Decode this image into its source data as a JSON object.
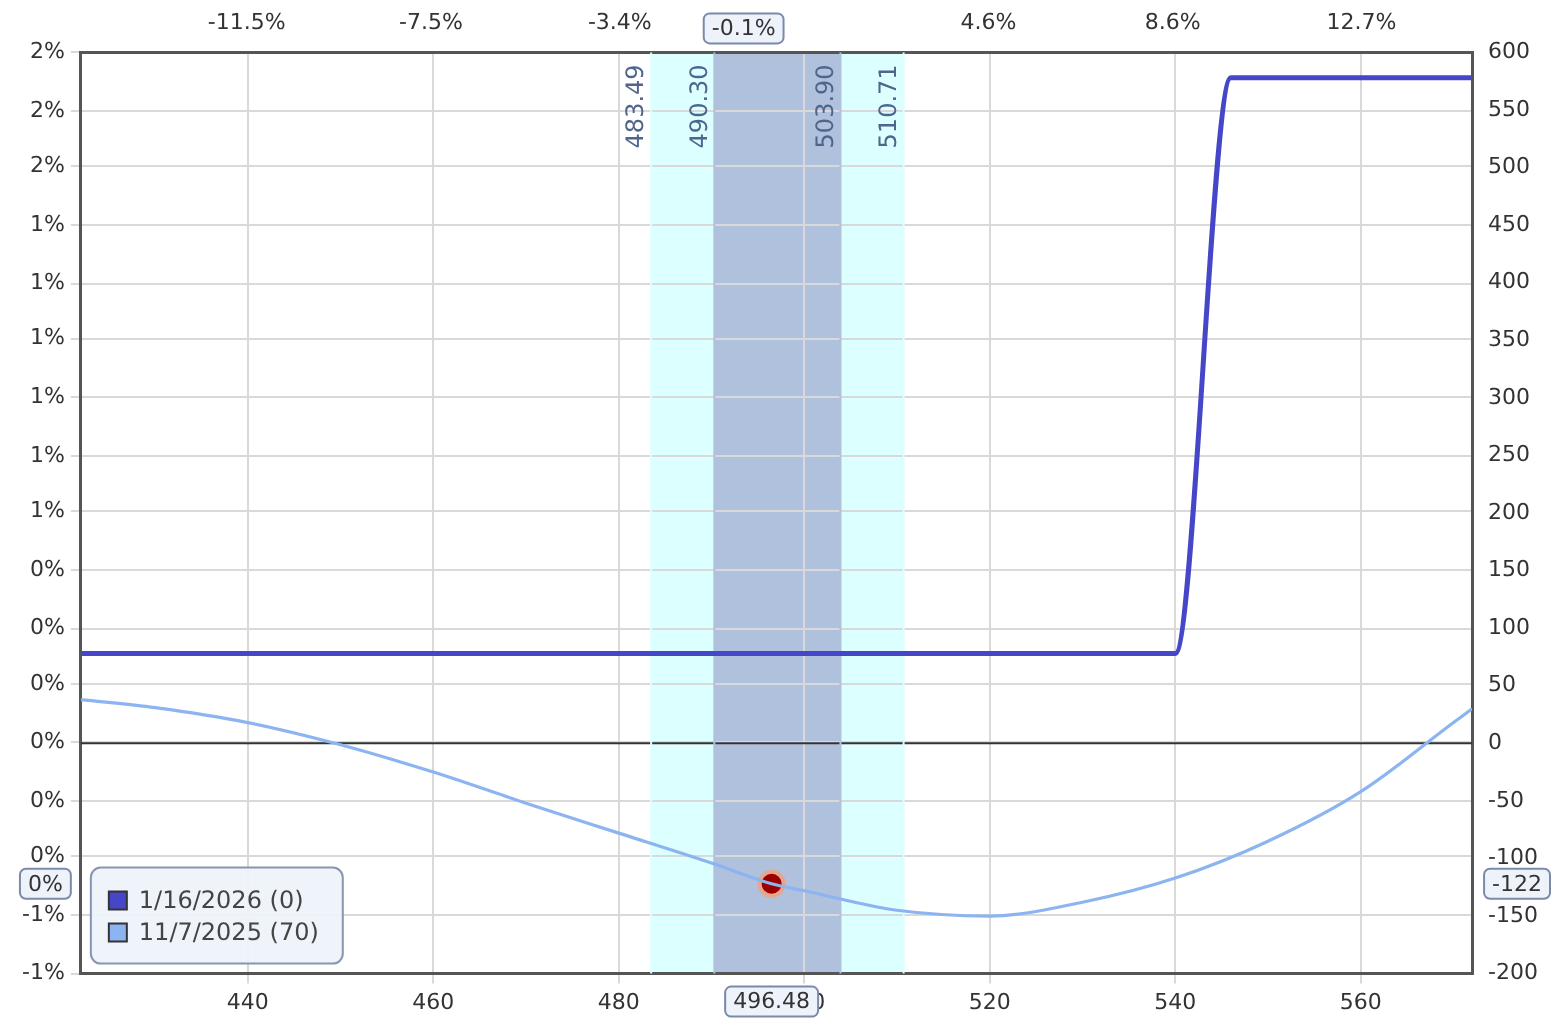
{
  "chart_data": {
    "type": "line",
    "x": [
      422,
      430,
      440,
      449.4,
      460,
      470,
      480,
      490,
      496.48,
      500,
      510,
      520,
      530,
      540,
      550,
      560,
      570,
      572
    ],
    "xlim": [
      422,
      572
    ],
    "xticks": [
      440,
      460,
      480,
      500,
      520,
      540,
      560
    ],
    "x2lim": [
      -15.1,
      15.1
    ],
    "x2ticks": [
      {
        "value": -11.5,
        "label": "-11.5%"
      },
      {
        "value": -7.5,
        "label": "-7.5%"
      },
      {
        "value": -3.4,
        "label": "-3.4%"
      },
      {
        "value": 0.6,
        "label": null
      },
      {
        "value": 4.6,
        "label": "4.6%"
      },
      {
        "value": 8.6,
        "label": "8.6%"
      },
      {
        "value": 12.7,
        "label": "12.7%"
      }
    ],
    "ylim": [
      -0.67,
      2
    ],
    "yticks": [
      {
        "value": -0.67,
        "label": "-1%"
      },
      {
        "value": -0.5,
        "label": "-1%"
      },
      {
        "value": -0.33,
        "label": "0%"
      },
      {
        "value": -0.17,
        "label": "0%"
      },
      {
        "value": 0,
        "label": "0%"
      },
      {
        "value": 0.17,
        "label": "0%"
      },
      {
        "value": 0.33,
        "label": "0%"
      },
      {
        "value": 0.5,
        "label": "0%"
      },
      {
        "value": 0.67,
        "label": "1%"
      },
      {
        "value": 0.83,
        "label": "1%"
      },
      {
        "value": 1,
        "label": "1%"
      },
      {
        "value": 1.17,
        "label": "1%"
      },
      {
        "value": 1.33,
        "label": "1%"
      },
      {
        "value": 1.5,
        "label": "1%"
      },
      {
        "value": 1.67,
        "label": "2%"
      },
      {
        "value": 1.83,
        "label": "2%"
      },
      {
        "value": 2,
        "label": "2%"
      }
    ],
    "y2lim": [
      -200,
      600
    ],
    "y2ticks": [
      -200,
      -150,
      -100,
      -50,
      0,
      50,
      100,
      150,
      200,
      250,
      300,
      350,
      400,
      450,
      500,
      550,
      600
    ],
    "series": [
      {
        "name": "1/16/2026 (0)",
        "color": "#4646c8",
        "axis": "y2",
        "x": [
          422,
          540,
          546,
          572
        ],
        "values": [
          78,
          78,
          578,
          578
        ]
      },
      {
        "name": "11/7/2025 (70)",
        "color": "#8cb4f0",
        "axis": "y2",
        "values": [
          38,
          31,
          18,
          0,
          -25,
          -52,
          -78,
          -104,
          -122,
          -128,
          -145,
          -150,
          -138,
          -117,
          -85,
          -42,
          18,
          30
        ]
      },
      {
        "type": "scatter",
        "color": "#9b0000",
        "axis": "y2",
        "marker": "circle",
        "x": [
          496.48
        ],
        "values": [
          -122
        ]
      }
    ],
    "bands": [
      {
        "axis": "x",
        "from": 483.49,
        "to": 510.71,
        "color": "#dcffff"
      },
      {
        "axis": "x",
        "from": 490.3,
        "to": 503.9,
        "color": "#afc1dc"
      }
    ],
    "ref_lines": [
      {
        "axis": "y2",
        "value": 0,
        "color": "#333333"
      },
      {
        "axis": "x",
        "value": 483.49,
        "label": "483.49",
        "color": "#dcffff"
      },
      {
        "axis": "x",
        "value": 490.3,
        "label": "490.30",
        "color": "#afc1dc"
      },
      {
        "axis": "x",
        "value": 503.9,
        "label": "503.90",
        "color": "#afc1dc"
      },
      {
        "axis": "x",
        "value": 510.71,
        "label": "510.71",
        "color": "#dcffff"
      }
    ],
    "annotations": [
      "496.48",
      "-0.1%",
      "0%",
      "-122"
    ],
    "grid": true,
    "legend": "bottom left",
    "marker": "none",
    "line_style": "solid"
  }
}
